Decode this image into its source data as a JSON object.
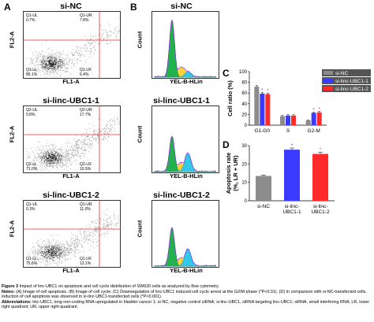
{
  "figure": {
    "panels": {
      "A": "A",
      "B": "B",
      "C": "C",
      "D": "D"
    },
    "scatter_plots": [
      {
        "title": "si-NC",
        "ylabel": "FL2-A",
        "xlabel": "FL1-A",
        "quadrants": {
          "ul": {
            "name": "Q1-UL",
            "value": "0.7%"
          },
          "ur": {
            "name": "Q1-UR",
            "value": "7.8%"
          },
          "ll": {
            "name": "Q1-LL",
            "value": "85.1%"
          },
          "lr": {
            "name": "Q1-LR",
            "value": "6.4%"
          }
        }
      },
      {
        "title": "si-linc-UBC1-1",
        "ylabel": "FL2-A",
        "xlabel": "FL1-A",
        "quadrants": {
          "ul": {
            "name": "Q2-UL",
            "value": "0.8%"
          },
          "ur": {
            "name": "Q2-UR",
            "value": "17.7%"
          },
          "ll": {
            "name": "Q2-LL",
            "value": "71.0%"
          },
          "lr": {
            "name": "Q2-LR",
            "value": "10.5%"
          }
        }
      },
      {
        "title": "si-linc-UBC1-2",
        "ylabel": "FL2-A",
        "xlabel": "FL1-A",
        "quadrants": {
          "ul": {
            "name": "Q1-UL",
            "value": "0.3%"
          },
          "ur": {
            "name": "Q1-UR",
            "value": "11.0%"
          },
          "ll": {
            "name": "Q1-LL",
            "value": "75.6%"
          },
          "lr": {
            "name": "Q1-LR",
            "value": "13.1%"
          }
        }
      }
    ],
    "histograms": [
      {
        "title": "si-NC",
        "ylabel": "Count",
        "xlabel": "YEL-B-HLin"
      },
      {
        "title": "si-linc-UBC1-1",
        "ylabel": "Count",
        "xlabel": "YEL-B-HLin"
      },
      {
        "title": "si-linc-UBC1-2",
        "ylabel": "Count",
        "xlabel": "YEL-B-HLin"
      }
    ],
    "caption": {
      "figure_label": "Figure 3",
      "figure_text": "Impact of linc-UBC1 on apoptosis and cell cycle distribution of SW620 cells as analyzed by flow cytometry.",
      "notes_label": "Notes:",
      "notes_text": "(A) Image of cell apoptosis. (B) Image of cell cycle. (C) Downregulation of linc-UBC1 induced cell cycle arrest at the G2/M phase (*P<0.01). (D) In comparison with si-NC-transfected cells, induction of cell apoptosis was observed in si-linc-UBC1-transfected cells (*P<0.001).",
      "abbr_label": "Abbreviations:",
      "abbr_text": "linc-UBC1, long non-coding RNA upregulated in bladder cancer 1; si-NC, negative control siRNA; si-linc-UBC1, siRNA targeting linc-UBC1; siRNA, small interfering RNA; LR, lower right quadrant; UR, upper right quadrant."
    }
  },
  "chart_data": [
    {
      "type": "bar",
      "panel": "C",
      "ylabel": "Cell ratio (%)",
      "categories": [
        "G1-G0",
        "S",
        "G2-M"
      ],
      "ylim": [
        0,
        100
      ],
      "yticks": [
        0,
        20,
        40,
        60,
        80,
        100
      ],
      "legend_placement": "top-right",
      "series": [
        {
          "name": "si-NC",
          "color": "#8c8c8c",
          "values": [
            72,
            17,
            9
          ],
          "errors": [
            2,
            1,
            1
          ],
          "sig": [
            false,
            false,
            false
          ]
        },
        {
          "name": "si-linc-UBC1-1",
          "color": "#3b3bff",
          "values": [
            59,
            18,
            23
          ],
          "errors": [
            2,
            1.5,
            1.5
          ],
          "sig": [
            true,
            false,
            true
          ]
        },
        {
          "name": "si-linc-UBC1-2",
          "color": "#ff2b2b",
          "values": [
            58,
            18,
            24
          ],
          "errors": [
            2,
            1.5,
            1.5
          ],
          "sig": [
            true,
            false,
            true
          ]
        }
      ],
      "sig_marker": "*"
    },
    {
      "type": "bar",
      "panel": "D",
      "ylabel": "Apoptosis rate (% LR + UR)",
      "ylabel_line1": "Apoptosis rate",
      "ylabel_line2": "(%, LR + UR)",
      "categories": [
        "si-NC",
        "si-linc-UBC1-1",
        "si-linc-UBC1-2"
      ],
      "category_lines": [
        [
          "si-NC"
        ],
        [
          "si-linc-",
          "UBC1-1"
        ],
        [
          "si-linc-",
          "UBC1-2"
        ]
      ],
      "values": [
        13.5,
        27.8,
        25.5
      ],
      "errors": [
        0.5,
        0.9,
        1.0
      ],
      "colors": [
        "#8c8c8c",
        "#3b3bff",
        "#ff2b2b"
      ],
      "sig": [
        false,
        true,
        true
      ],
      "sig_marker": "*",
      "ylim": [
        0,
        30
      ],
      "yticks": [
        0,
        10,
        20,
        30
      ]
    }
  ]
}
